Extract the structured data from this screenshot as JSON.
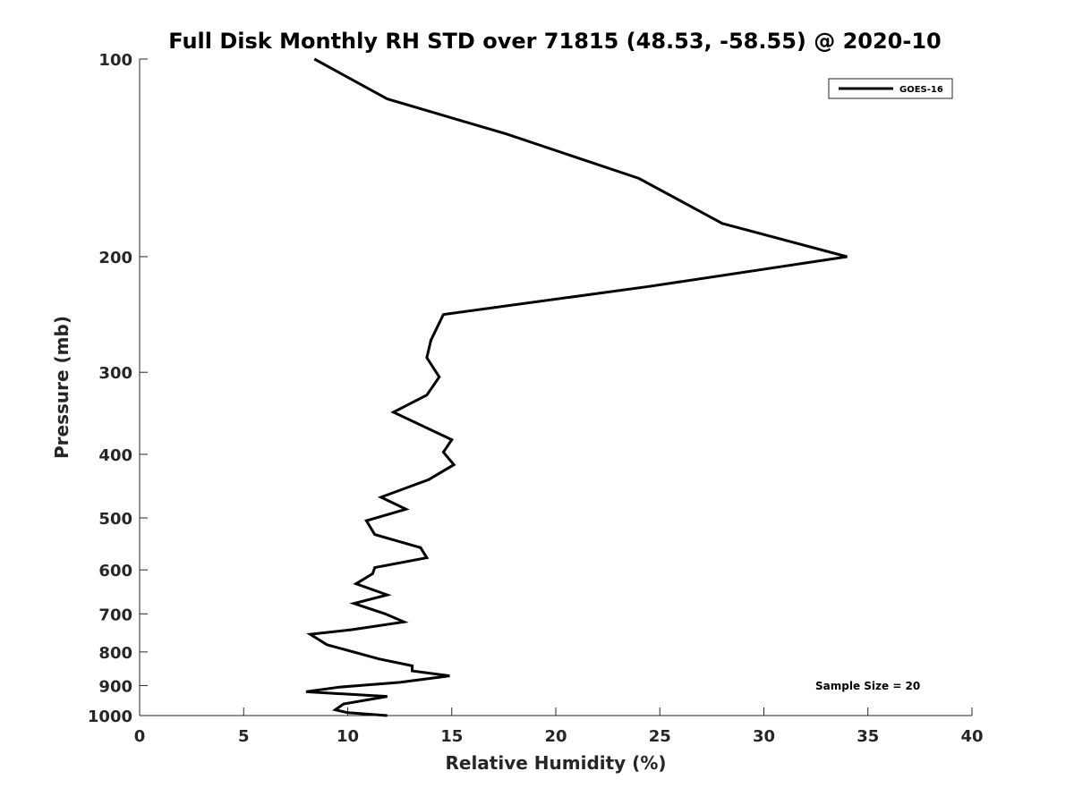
{
  "chart_data": {
    "type": "line",
    "title": "Full Disk Monthly RH STD over 71815 (48.53, -58.55) @ 2020-10",
    "xlabel": "Relative Humidity (%)",
    "ylabel": "Pressure (mb)",
    "xlim": [
      0,
      40
    ],
    "ylim": [
      100,
      1000
    ],
    "y_scale": "log",
    "y_reversed": true,
    "x_ticks": [
      0,
      5,
      10,
      15,
      20,
      25,
      30,
      35,
      40
    ],
    "y_ticks": [
      100,
      200,
      300,
      400,
      500,
      600,
      700,
      800,
      900,
      1000
    ],
    "grid": false,
    "legend_position": "top-right",
    "annotation": "Sample Size = 20",
    "series": [
      {
        "name": "GOES-16",
        "color": "#000000",
        "x": [
          8.4,
          11.9,
          17.6,
          24.0,
          28.0,
          34.0,
          24.5,
          14.6,
          14.0,
          13.8,
          14.4,
          13.8,
          12.2,
          15.0,
          14.6,
          15.1,
          13.9,
          11.6,
          12.8,
          10.9,
          11.3,
          13.5,
          13.8,
          11.3,
          11.2,
          10.4,
          11.9,
          10.3,
          11.8,
          12.7,
          10.2,
          8.2,
          9.0,
          11.5,
          13.1,
          13.1,
          14.9,
          12.5,
          9.6,
          8.0,
          11.9,
          9.8,
          9.4,
          10.0,
          11.9
        ],
        "y": [
          100,
          115,
          130,
          152,
          178,
          200,
          222,
          245,
          268,
          285,
          305,
          325,
          345,
          380,
          397,
          415,
          437,
          465,
          485,
          505,
          530,
          555,
          575,
          595,
          608,
          630,
          655,
          675,
          700,
          720,
          740,
          752,
          780,
          820,
          840,
          855,
          870,
          890,
          905,
          920,
          935,
          960,
          980,
          990,
          1000
        ]
      }
    ]
  }
}
